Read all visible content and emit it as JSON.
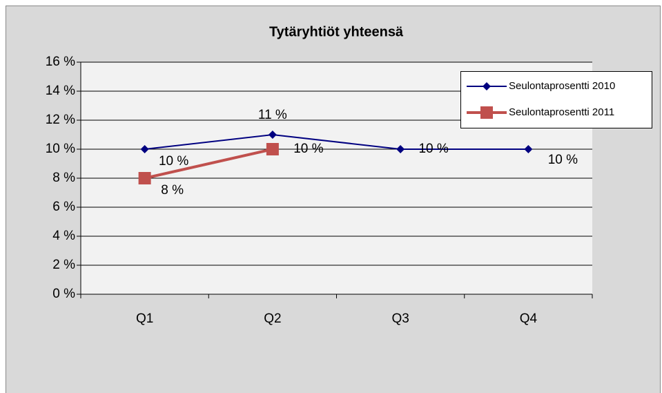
{
  "chart_data": {
    "type": "line",
    "title": "Tytäryhtiöt yhteensä",
    "categories": [
      "Q1",
      "Q2",
      "Q3",
      "Q4"
    ],
    "series": [
      {
        "name": "Seulontaprosentti  2010",
        "color": "#000080",
        "marker": "diamond",
        "values": [
          10,
          11,
          10,
          10
        ],
        "value_labels": [
          "10 %",
          "11 %",
          "10 %",
          "10 %"
        ]
      },
      {
        "name": "Seulontaprosentti  2011",
        "color": "#c0504d",
        "marker": "square",
        "values": [
          8,
          10,
          null,
          null
        ],
        "value_labels": [
          "8 %",
          "10 %",
          null,
          null
        ]
      }
    ],
    "ylim": [
      0,
      16
    ],
    "yticks": [
      {
        "value": 0,
        "label": "0 %"
      },
      {
        "value": 2,
        "label": "2 %"
      },
      {
        "value": 4,
        "label": "4 %"
      },
      {
        "value": 6,
        "label": "6 %"
      },
      {
        "value": 8,
        "label": "8 %"
      },
      {
        "value": 10,
        "label": "10 %"
      },
      {
        "value": 12,
        "label": "12 %"
      },
      {
        "value": 14,
        "label": "14 %"
      },
      {
        "value": 16,
        "label": "16 %"
      }
    ],
    "grid": true,
    "legend": "top-right"
  }
}
